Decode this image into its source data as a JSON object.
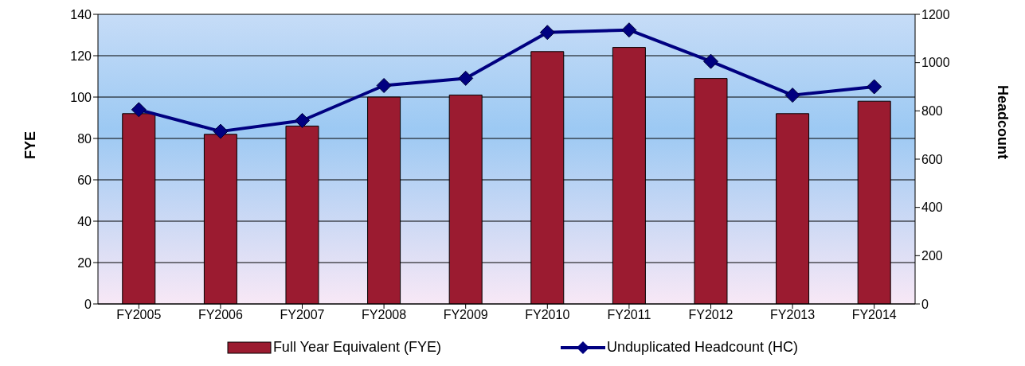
{
  "chart_data": {
    "type": "bar",
    "categories": [
      "FY2005",
      "FY2006",
      "FY2007",
      "FY2008",
      "FY2009",
      "FY2010",
      "FY2011",
      "FY2012",
      "FY2013",
      "FY2014"
    ],
    "ylabel": "FYE",
    "y2label": "Headcount",
    "series": [
      {
        "name": "Full Year Equivalent (FYE)",
        "color": "#9b1b30",
        "values": [
          92,
          82,
          86,
          100,
          101,
          122,
          124,
          109,
          92,
          98
        ]
      },
      {
        "name": "Unduplicated Headcount (HC)",
        "type": "line",
        "axis": "y2",
        "color": "#000080",
        "marker": "diamond",
        "values": [
          805,
          715,
          760,
          905,
          935,
          1125,
          1135,
          1005,
          865,
          900
        ]
      }
    ],
    "ylim": [
      0,
      140
    ],
    "yticks": [
      0,
      20,
      40,
      60,
      80,
      100,
      120,
      140
    ],
    "y2lim": [
      0,
      1200
    ],
    "y2ticks": [
      0,
      200,
      400,
      600,
      800,
      1000,
      1200
    ],
    "grid": "y",
    "legend": "bottom"
  }
}
